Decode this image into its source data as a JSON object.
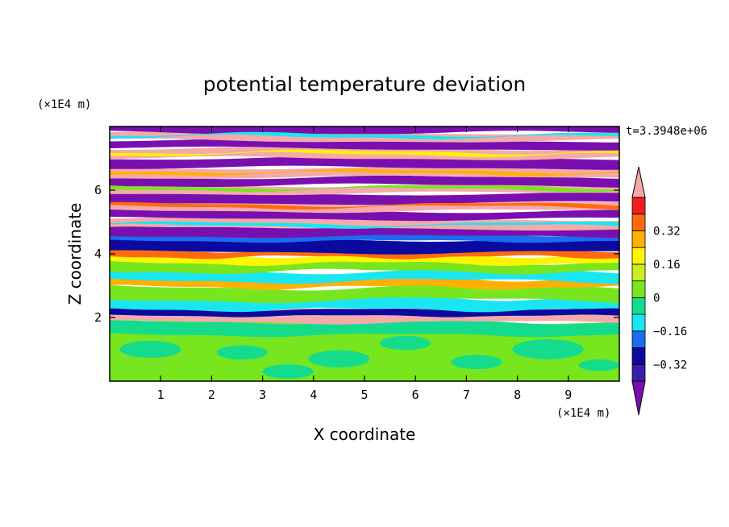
{
  "chart_data": {
    "type": "heatmap",
    "title": "potential temperature deviation",
    "xlabel": "X coordinate",
    "ylabel": "Z coordinate",
    "x_unit": "(×1E4 m)",
    "y_unit": "(×1E4 m)",
    "time_label": "t=3.3948e+06",
    "xlim": [
      0,
      10
    ],
    "ylim": [
      0,
      8
    ],
    "x_ticks": [
      "1",
      "2",
      "3",
      "4",
      "5",
      "6",
      "7",
      "8",
      "9"
    ],
    "y_ticks": [
      "2",
      "4",
      "6"
    ],
    "colorbar": {
      "levels": [
        -0.48,
        -0.4,
        -0.32,
        -0.24,
        -0.16,
        -0.08,
        0,
        0.08,
        0.16,
        0.24,
        0.32,
        0.4,
        0.48
      ],
      "labels": [
        "0.32",
        "0.16",
        "0",
        "−0.16",
        "−0.32"
      ],
      "colors_low_to_high": [
        "#7a0fb0",
        "#3a1ea8",
        "#0a0aa0",
        "#1a6cf0",
        "#19e6f0",
        "#14dc8c",
        "#78e61e",
        "#c6f01e",
        "#fff500",
        "#ffb000",
        "#ff6a10",
        "#f01e1e",
        "#f4aaaa"
      ],
      "extend": "both"
    },
    "bands": [
      {
        "z": [
          0.0,
          1.8
        ],
        "field": "near-zero mix",
        "colors": [
          "#78e61e",
          "#14dc8c"
        ]
      },
      {
        "z": [
          1.8,
          2.2
        ],
        "field": "thin alternating layers",
        "colors": [
          "#f4aaaa",
          "#7a0fb0",
          "#0a0aa0",
          "#ff6a10"
        ]
      },
      {
        "z": [
          2.2,
          4.0
        ],
        "field": "turbulent mix",
        "colors": [
          "#19e6f0",
          "#fff500",
          "#ff6a10",
          "#78e61e",
          "#0a0aa0"
        ]
      },
      {
        "z": [
          4.0,
          4.8
        ],
        "field": "negative layers",
        "colors": [
          "#7a0fb0",
          "#0a0aa0",
          "#1a6cf0"
        ]
      },
      {
        "z": [
          4.8,
          7.9
        ],
        "field": "alternating positive/negative layers",
        "colors": [
          "#f4aaaa",
          "#7a0fb0"
        ]
      }
    ]
  }
}
